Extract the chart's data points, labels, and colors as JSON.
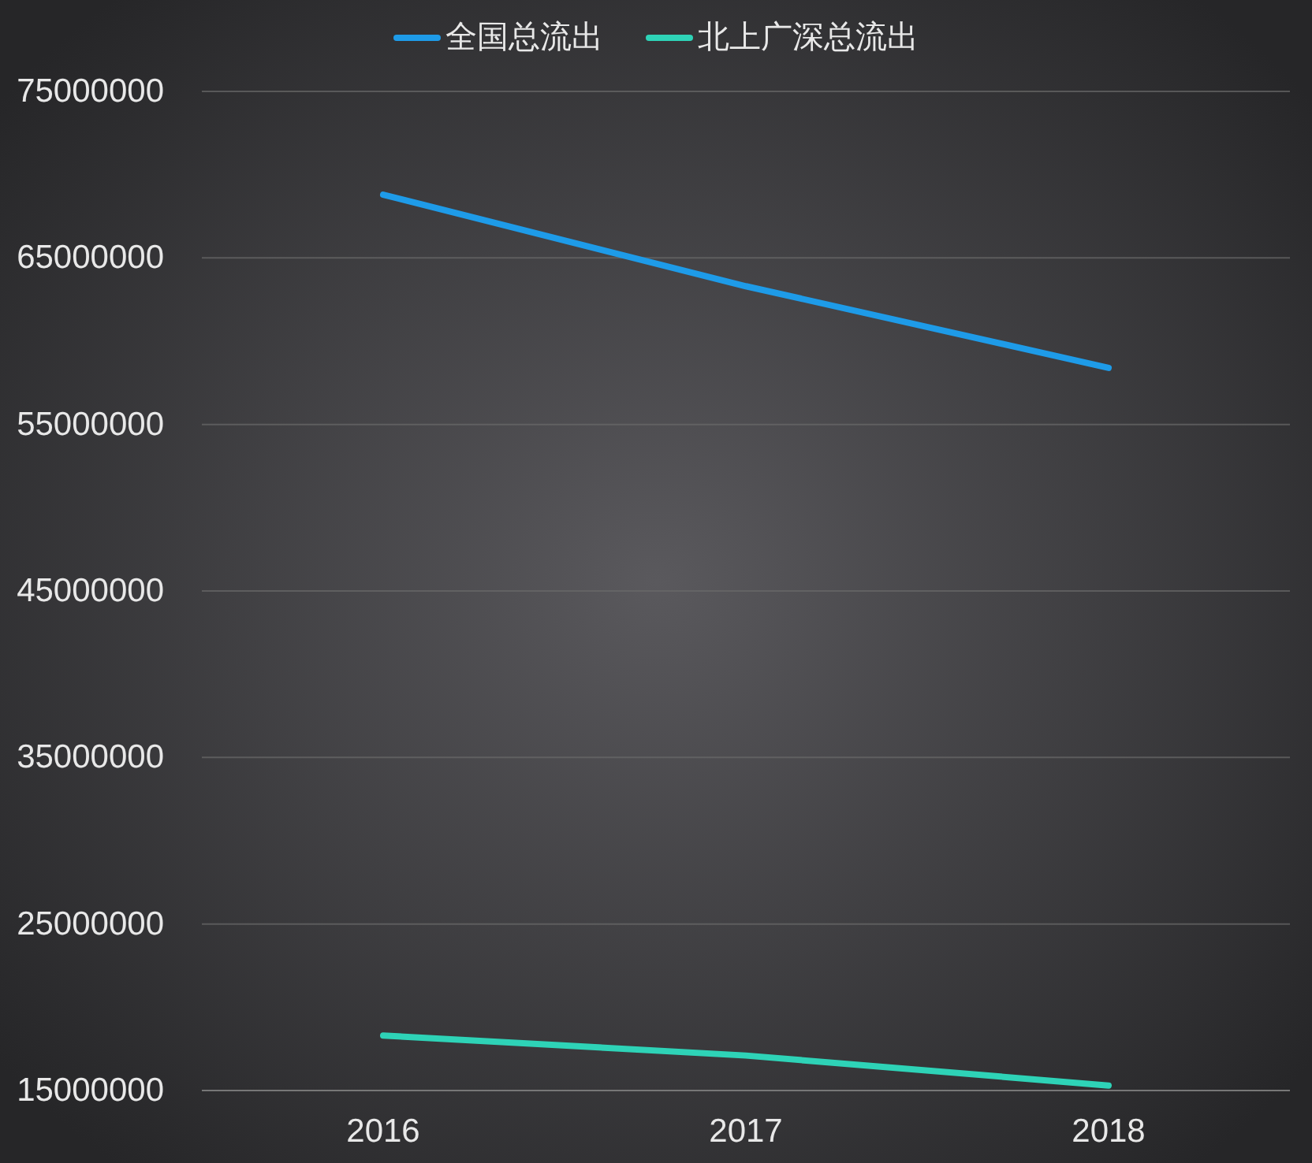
{
  "chart_data": {
    "type": "line",
    "categories": [
      "2016",
      "2017",
      "2018"
    ],
    "series": [
      {
        "name": "全国总流出",
        "color": "#1e9be8",
        "values": [
          68800000,
          63300000,
          58400000
        ]
      },
      {
        "name": "北上广深总流出",
        "color": "#2ed3b7",
        "values": [
          18300000,
          17100000,
          15300000
        ]
      }
    ],
    "ylim": [
      15000000,
      75000000
    ],
    "yticks": [
      15000000,
      25000000,
      35000000,
      45000000,
      55000000,
      65000000,
      75000000
    ],
    "grid": "y",
    "legend": "top",
    "line_style": "solid"
  }
}
